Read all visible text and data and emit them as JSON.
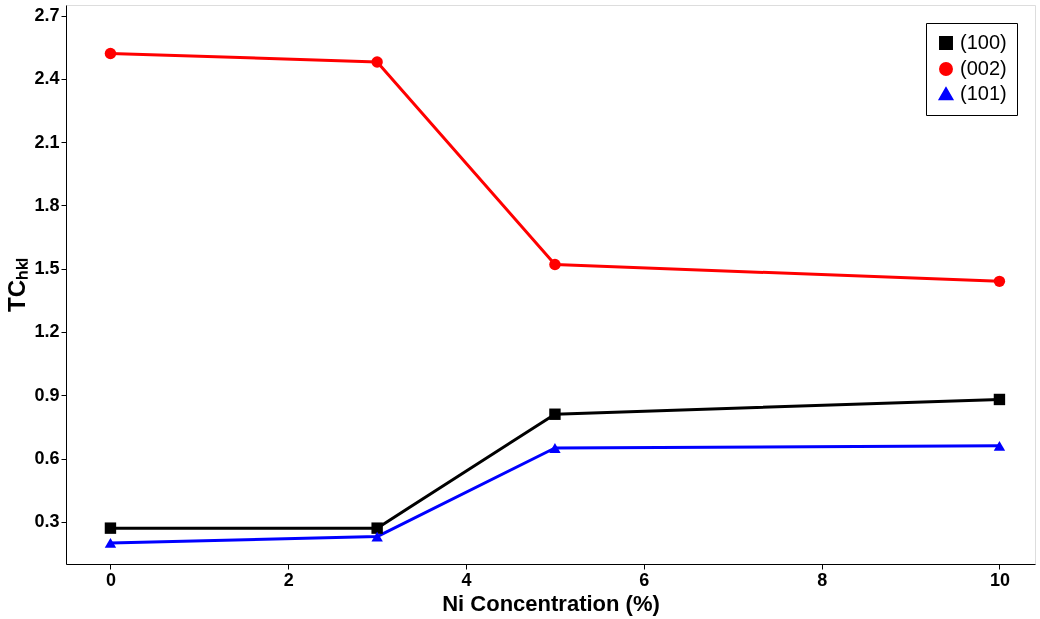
{
  "chart_data": {
    "type": "line",
    "xlabel": "Ni Concentration (%)",
    "ylabel": "TCₕₖₗ",
    "x": [
      0,
      3,
      5,
      10
    ],
    "series": [
      {
        "name": "(100)",
        "color": "#000000",
        "marker": "square",
        "values": [
          0.27,
          0.27,
          0.81,
          0.88
        ]
      },
      {
        "name": "(002)",
        "color": "#ff0000",
        "marker": "circle",
        "values": [
          2.52,
          2.48,
          1.52,
          1.44
        ]
      },
      {
        "name": "(101)",
        "color": "#0000ff",
        "marker": "triangle",
        "values": [
          0.2,
          0.23,
          0.65,
          0.66
        ]
      }
    ],
    "xlim": [
      -0.5,
      10.4
    ],
    "xticks": [
      0,
      2,
      4,
      6,
      8,
      10
    ],
    "ylim": [
      0.1,
      2.75
    ],
    "yticks": [
      0.3,
      0.6,
      0.9,
      1.2,
      1.5,
      1.8,
      2.1,
      2.4,
      2.7
    ],
    "grid": false,
    "legend": "top right",
    "line_style": "solid"
  }
}
